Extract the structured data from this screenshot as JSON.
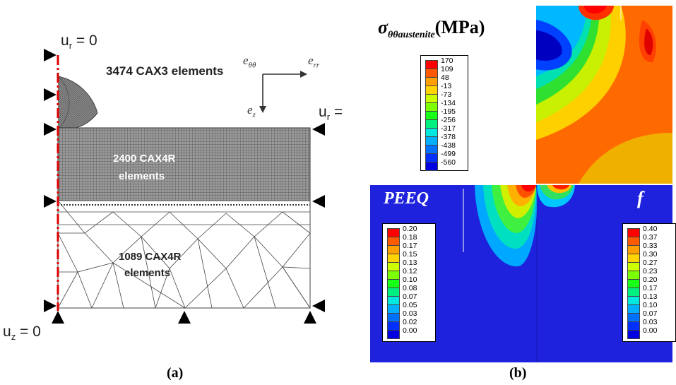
{
  "panel_a": {
    "caption": "(a)",
    "bc_top": "uₑ = 0",
    "bc_top_main": "u",
    "bc_top_sub": "r",
    "bc_top_tail": " = 0",
    "bc_right_main": "u",
    "bc_right_sub": "r",
    "bc_right_tail": " =",
    "bc_bottom_main": "u",
    "bc_bottom_sub": "z",
    "bc_bottom_tail": " = 0",
    "mesh1_label": "3474 CAX3 elements",
    "mesh2_line1": "2400 CAX4R",
    "mesh2_line2": "elements",
    "mesh3_line1": "1089 CAX4R",
    "mesh3_line2": "elements",
    "axis_theta": "eθθ",
    "axis_theta_main": "e",
    "axis_theta_sub": "θθ",
    "axis_rr_main": "e",
    "axis_rr_sub": "rr",
    "axis_z_main": "e",
    "axis_z_sub": "z"
  },
  "panel_b": {
    "caption": "(b)",
    "stress_title_main": "σ",
    "stress_title_sub": "θθaustenite",
    "stress_title_tail": "(MPa)",
    "stress_legend": [
      "170",
      "109",
      "48",
      "-13",
      "-73",
      "-134",
      "-195",
      "-256",
      "-317",
      "-378",
      "-438",
      "-499",
      "-560"
    ],
    "peeq_title": "PEEQ",
    "peeq_legend": [
      "0.20",
      "0.18",
      "0.17",
      "0.15",
      "0.13",
      "0.12",
      "0.10",
      "0.08",
      "0.07",
      "0.05",
      "0.03",
      "0.02",
      "0.00"
    ],
    "f_title": "f",
    "f_legend": [
      "0.40",
      "0.37",
      "0.33",
      "0.30",
      "0.27",
      "0.23",
      "0.20",
      "0.17",
      "0.13",
      "0.10",
      "0.07",
      "0.03",
      "0.00"
    ],
    "colors": [
      "#ff0000",
      "#ff5a00",
      "#ffa000",
      "#ffd400",
      "#ccff00",
      "#7cff00",
      "#18ff18",
      "#00f080",
      "#00e8e0",
      "#00b0ff",
      "#0070ff",
      "#0030ff",
      "#0000e0"
    ],
    "field_bg": "#1e22dc"
  }
}
